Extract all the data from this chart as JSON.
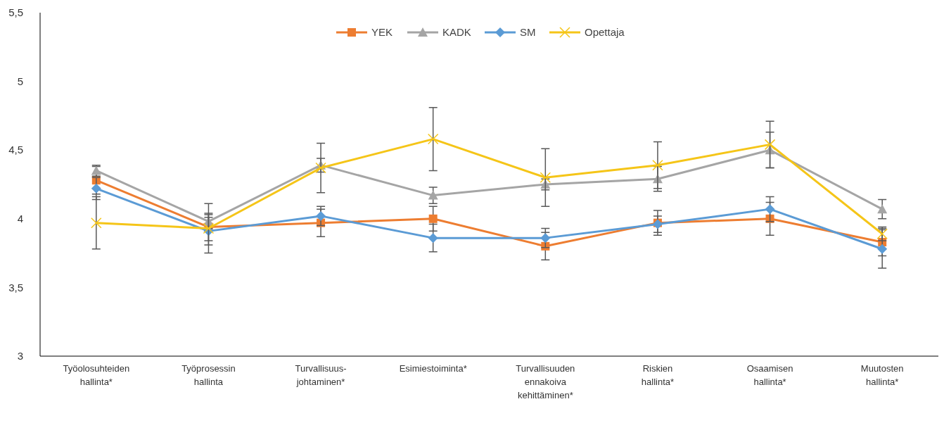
{
  "chart_data": {
    "type": "line",
    "categories": [
      "Työolosuhteiden hallinta*",
      "Työprosessin hallinta",
      "Turvallisuus-johtaminen*",
      "Esimiestoiminta*",
      "Turvallisuuden ennakoiva kehittäminen*",
      "Riskien hallinta*",
      "Osaamisen hallinta*",
      "Muutosten hallinta*"
    ],
    "series": [
      {
        "name": "YEK",
        "color": "#ed7d31",
        "marker": "square",
        "values": [
          4.28,
          3.94,
          3.97,
          4.0,
          3.8,
          3.97,
          4.0,
          3.83
        ],
        "errors": [
          0.1,
          0.1,
          0.1,
          0.09,
          0.1,
          0.09,
          0.12,
          0.1
        ]
      },
      {
        "name": "KADK",
        "color": "#a5a5a5",
        "marker": "triangle",
        "values": [
          4.35,
          3.98,
          4.39,
          4.17,
          4.25,
          4.29,
          4.5,
          4.07
        ],
        "errors": [
          0.04,
          0.05,
          0.05,
          0.06,
          0.04,
          0.09,
          0.13,
          0.07
        ]
      },
      {
        "name": "SM",
        "color": "#5b9bd5",
        "marker": "diamond",
        "values": [
          4.22,
          3.91,
          4.02,
          3.86,
          3.86,
          3.96,
          4.07,
          3.78
        ],
        "errors": [
          0.08,
          0.1,
          0.07,
          0.1,
          0.07,
          0.06,
          0.09,
          0.14
        ]
      },
      {
        "name": "Opettaja",
        "color": "#f5c518",
        "marker": "cross",
        "values": [
          3.97,
          3.93,
          4.37,
          4.58,
          4.3,
          4.39,
          4.54,
          3.89
        ],
        "errors": [
          0.19,
          0.18,
          0.18,
          0.23,
          0.21,
          0.17,
          0.17,
          0.05
        ]
      }
    ],
    "ylim": [
      3,
      5.5
    ],
    "yticks": [
      {
        "value": 3,
        "label": "3"
      },
      {
        "value": 3.5,
        "label": "3,5"
      },
      {
        "value": 4,
        "label": "4"
      },
      {
        "value": 4.5,
        "label": "4,5"
      },
      {
        "value": 5,
        "label": "5"
      },
      {
        "value": 5.5,
        "label": "5,5"
      }
    ],
    "grid": false,
    "legend": "top"
  }
}
